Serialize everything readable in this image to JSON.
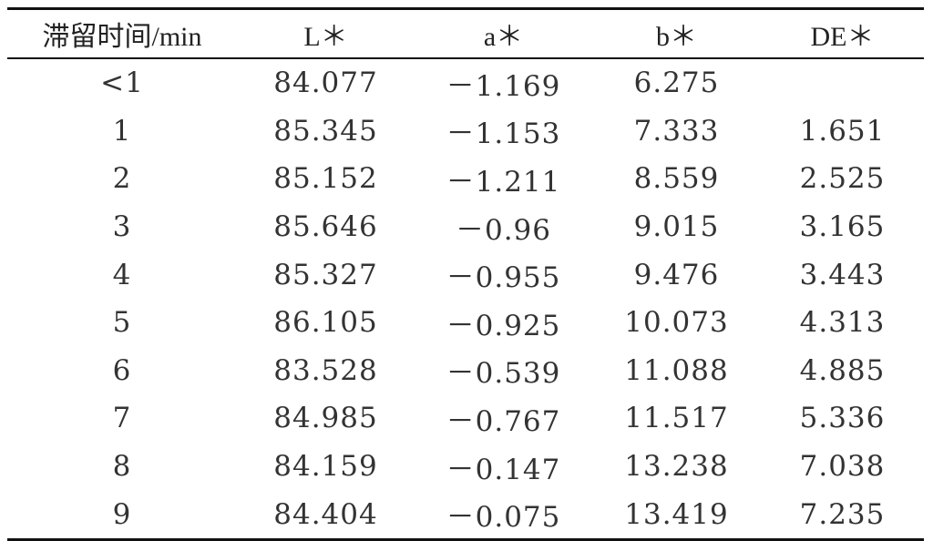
{
  "table": {
    "headers": [
      "滞留时间/min",
      "L＊",
      "a＊",
      "b＊",
      "DE＊"
    ],
    "rows": [
      [
        "<1",
        "84.077",
        "－1.169",
        "6.275",
        ""
      ],
      [
        "1",
        "85.345",
        "－1.153",
        "7.333",
        "1.651"
      ],
      [
        "2",
        "85.152",
        "－1.211",
        "8.559",
        "2.525"
      ],
      [
        "3",
        "85.646",
        "－0.96",
        "9.015",
        "3.165"
      ],
      [
        "4",
        "85.327",
        "－0.955",
        "9.476",
        "3.443"
      ],
      [
        "5",
        "86.105",
        "－0.925",
        "10.073",
        "4.313"
      ],
      [
        "6",
        "83.528",
        "－0.539",
        "11.088",
        "4.885"
      ],
      [
        "7",
        "84.985",
        "－0.767",
        "11.517",
        "5.336"
      ],
      [
        "8",
        "84.159",
        "－0.147",
        "13.238",
        "7.038"
      ],
      [
        "9",
        "84.404",
        "－0.075",
        "13.419",
        "7.235"
      ]
    ]
  }
}
